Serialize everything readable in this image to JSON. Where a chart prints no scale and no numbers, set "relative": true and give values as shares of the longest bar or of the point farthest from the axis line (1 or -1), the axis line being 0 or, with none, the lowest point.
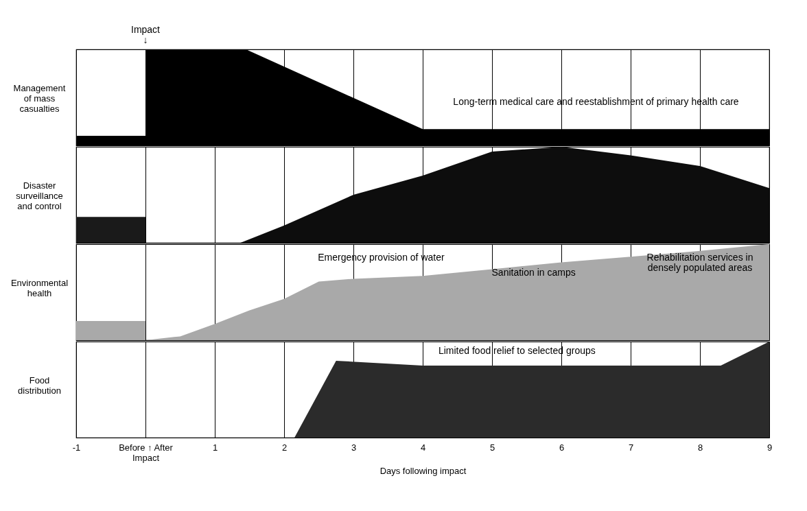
{
  "chart_data": [
    {
      "type": "area",
      "ylabel": "Management of mass casualties",
      "xlim": [
        -1,
        9
      ],
      "xticks": [
        -1,
        0,
        1,
        2,
        3,
        4,
        5,
        6,
        7,
        8,
        9
      ],
      "grid": "x",
      "tick_labels": false,
      "relative": true,
      "annotations": [
        "Impact ↓",
        "Long-term medical care and reestablishment of primary health care"
      ],
      "series": [
        {
          "color": "#000000",
          "x": [
            -1,
            0
          ],
          "values": [
            0.1,
            0.1
          ]
        },
        {
          "color": "#000000",
          "x": [
            0,
            1.45,
            4,
            9
          ],
          "values": [
            1,
            1,
            0.17,
            0.17
          ]
        }
      ]
    },
    {
      "type": "area",
      "ylabel": "Disaster surveillance and control",
      "xlim": [
        -1,
        9
      ],
      "xticks": [
        -1,
        0,
        1,
        2,
        3,
        4,
        5,
        6,
        7,
        8,
        9
      ],
      "grid": "x",
      "tick_labels": false,
      "relative": true,
      "series": [
        {
          "color": "#1a1a1a",
          "x": [
            -1,
            0
          ],
          "values": [
            0.27,
            0.27
          ]
        },
        {
          "color": "#0d0d0d",
          "x": [
            1.37,
            2,
            3,
            4,
            5,
            6,
            7,
            8,
            9
          ],
          "values": [
            0,
            0.18,
            0.5,
            0.7,
            0.95,
            1,
            0.91,
            0.8,
            0.57
          ]
        }
      ]
    },
    {
      "type": "area",
      "ylabel": "Environmental health",
      "xlim": [
        -1,
        9
      ],
      "xticks": [
        -1,
        0,
        1,
        2,
        3,
        4,
        5,
        6,
        7,
        8,
        9
      ],
      "grid": "x",
      "tick_labels": false,
      "relative": true,
      "annotations": [
        "Emergency provision of water",
        "Sanitation in camps",
        "Rehabilitation services in densely populated areas"
      ],
      "series": [
        {
          "color": "#a9a9a9",
          "x": [
            -1,
            0
          ],
          "values": [
            0.2,
            0.2
          ]
        },
        {
          "color": "#a9a9a9",
          "x": [
            0,
            0.5,
            1,
            1.5,
            2,
            2.5,
            3,
            4,
            5,
            6,
            7,
            8,
            9
          ],
          "values": [
            0,
            0.04,
            0.17,
            0.31,
            0.43,
            0.61,
            0.64,
            0.67,
            0.74,
            0.81,
            0.87,
            0.93,
            1
          ]
        }
      ]
    },
    {
      "type": "area",
      "ylabel": "Food distribution",
      "xlabel": "Days following impact",
      "xlim": [
        -1,
        9
      ],
      "xticks": [
        -1,
        {
          "value": 0,
          "label": "Before ↑ After Impact"
        },
        1,
        2,
        3,
        4,
        5,
        6,
        7,
        8,
        9
      ],
      "grid": "x",
      "tick_labels": "x",
      "relative": true,
      "annotations": [
        "Limited food relief to selected groups"
      ],
      "series": [
        {
          "color": "#2b2b2b",
          "x": [
            2.15,
            2.75,
            4,
            6,
            8,
            8.3,
            9
          ],
          "values": [
            0,
            0.8,
            0.75,
            0.75,
            0.75,
            0.75,
            1
          ]
        }
      ]
    }
  ]
}
